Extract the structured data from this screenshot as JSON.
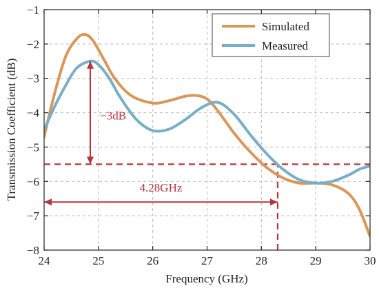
{
  "chart_data": {
    "type": "line",
    "xlabel": "Frequency (GHz)",
    "ylabel": "Transmission Coefficient (dB)",
    "xlim": [
      24,
      30
    ],
    "ylim": [
      -8,
      -1
    ],
    "xticks": [
      24,
      25,
      26,
      27,
      28,
      29,
      30
    ],
    "yticks": [
      -1,
      -2,
      -3,
      -4,
      -5,
      -6,
      -7,
      -8
    ],
    "xtick_labels": [
      "24",
      "25",
      "26",
      "27",
      "28",
      "29",
      "30"
    ],
    "ytick_labels": [
      "−1",
      "−2",
      "−3",
      "−4",
      "−5",
      "−6",
      "−7",
      "−8"
    ],
    "grid": true,
    "legend_position": "top-right",
    "series": [
      {
        "name": "Simulated",
        "color": "#d9975a",
        "x": [
          24.0,
          24.2,
          24.4,
          24.6,
          24.75,
          24.9,
          25.1,
          25.3,
          25.6,
          26.0,
          26.3,
          26.6,
          26.8,
          27.0,
          27.2,
          27.5,
          27.8,
          28.1,
          28.4,
          28.7,
          29.0,
          29.3,
          29.6,
          29.8,
          30.0
        ],
        "y": [
          -4.7,
          -3.4,
          -2.35,
          -1.85,
          -1.72,
          -1.9,
          -2.45,
          -3.0,
          -3.5,
          -3.72,
          -3.65,
          -3.52,
          -3.5,
          -3.6,
          -3.95,
          -4.6,
          -5.15,
          -5.6,
          -5.9,
          -6.05,
          -6.05,
          -6.1,
          -6.35,
          -6.8,
          -7.6
        ]
      },
      {
        "name": "Measured",
        "color": "#78aec8",
        "x": [
          24.0,
          24.2,
          24.4,
          24.6,
          24.85,
          25.0,
          25.2,
          25.4,
          25.7,
          26.0,
          26.3,
          26.6,
          26.9,
          27.2,
          27.5,
          27.8,
          28.1,
          28.4,
          28.7,
          29.0,
          29.3,
          29.6,
          29.8,
          30.0
        ],
        "y": [
          -4.5,
          -3.8,
          -3.2,
          -2.7,
          -2.5,
          -2.6,
          -3.0,
          -3.55,
          -4.2,
          -4.52,
          -4.48,
          -4.2,
          -3.85,
          -3.7,
          -4.05,
          -4.65,
          -5.2,
          -5.65,
          -5.95,
          -6.05,
          -6.0,
          -5.82,
          -5.65,
          -5.55
        ]
      }
    ],
    "reference_lines": [
      {
        "orientation": "horizontal",
        "value": -5.5,
        "style": "dashed",
        "color": "#b5363b"
      },
      {
        "orientation": "vertical",
        "value": 28.3,
        "from": -8,
        "to": -5.5,
        "style": "dashed",
        "color": "#b5363b"
      }
    ],
    "annotations": [
      {
        "text": "−3dB",
        "color": "#b5363b",
        "arrow": {
          "x1": 24.85,
          "y1": -2.5,
          "x2": 24.85,
          "y2": -5.5,
          "double": true
        },
        "label_at": [
          25.03,
          -4.2
        ]
      },
      {
        "text": "4.28GHz",
        "color": "#b5363b",
        "arrow": {
          "x1": 24.0,
          "y1": -6.6,
          "x2": 28.3,
          "y2": -6.6,
          "double": true
        },
        "label_at": [
          26.15,
          -6.3
        ]
      }
    ]
  }
}
